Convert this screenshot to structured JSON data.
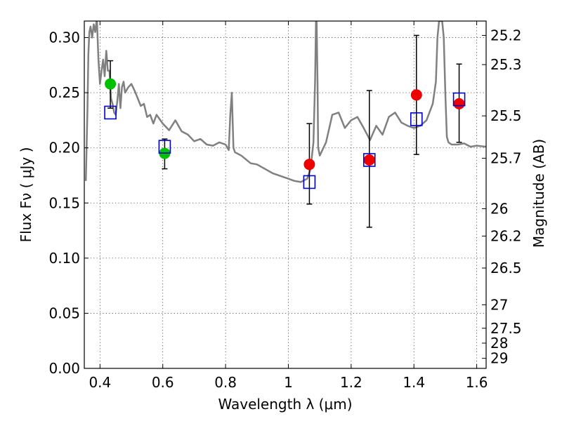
{
  "chart_data": {
    "type": "scatter",
    "title": "",
    "xlabel": "Wavelength  λ (μm)",
    "ylabel": "Flux  Fν  ( μJy )",
    "ylabel_right": "Magnitude (AB)",
    "xlim": [
      0.35,
      1.63
    ],
    "ylim": [
      0.0,
      0.315
    ],
    "grid": true,
    "x_ticks": [
      0.4,
      0.6,
      0.8,
      1.0,
      1.2,
      1.4,
      1.6
    ],
    "x_tick_labels": [
      "0.4",
      "0.6",
      "0.8",
      "1",
      "1.2",
      "1.4",
      "1.6"
    ],
    "y_ticks": [
      0.0,
      0.05,
      0.1,
      0.15,
      0.2,
      0.25,
      0.3
    ],
    "y_tick_labels": [
      "0.00",
      "0.05",
      "0.10",
      "0.15",
      "0.20",
      "0.25",
      "0.30"
    ],
    "right_ticks": [
      {
        "flux": 0.302,
        "label": "25.2"
      },
      {
        "flux": 0.2755,
        "label": "25.3"
      },
      {
        "flux": 0.229,
        "label": "25.5"
      },
      {
        "flux": 0.1906,
        "label": "25.7"
      },
      {
        "flux": 0.1448,
        "label": "26"
      },
      {
        "flux": 0.12,
        "label": "26.2"
      },
      {
        "flux": 0.091,
        "label": "26.5"
      },
      {
        "flux": 0.0577,
        "label": "27"
      },
      {
        "flux": 0.0364,
        "label": "27.5"
      },
      {
        "flux": 0.0229,
        "label": "28"
      },
      {
        "flux": 0.0091,
        "label": "29"
      }
    ],
    "series": [
      {
        "kind": "line",
        "color": "#808080",
        "x": [
          0.355,
          0.36,
          0.363,
          0.366,
          0.37,
          0.375,
          0.38,
          0.385,
          0.39,
          0.395,
          0.4,
          0.405,
          0.41,
          0.415,
          0.42,
          0.425,
          0.43,
          0.435,
          0.44,
          0.445,
          0.45,
          0.455,
          0.46,
          0.465,
          0.47,
          0.475,
          0.48,
          0.49,
          0.5,
          0.51,
          0.52,
          0.53,
          0.54,
          0.55,
          0.56,
          0.57,
          0.58,
          0.59,
          0.6,
          0.62,
          0.64,
          0.66,
          0.68,
          0.7,
          0.72,
          0.74,
          0.76,
          0.78,
          0.8,
          0.81,
          0.815,
          0.82,
          0.825,
          0.83,
          0.85,
          0.88,
          0.9,
          0.95,
          1.0,
          1.02,
          1.04,
          1.06,
          1.07,
          1.08,
          1.085,
          1.088,
          1.09,
          1.093,
          1.095,
          1.1,
          1.12,
          1.14,
          1.16,
          1.18,
          1.2,
          1.22,
          1.24,
          1.26,
          1.28,
          1.3,
          1.32,
          1.34,
          1.36,
          1.38,
          1.4,
          1.42,
          1.44,
          1.46,
          1.47,
          1.475,
          1.48,
          1.485,
          1.49,
          1.495,
          1.5,
          1.505,
          1.51,
          1.52,
          1.54,
          1.56,
          1.58,
          1.6,
          1.63
        ],
        "y": [
          0.17,
          0.235,
          0.285,
          0.305,
          0.31,
          0.3,
          0.312,
          0.305,
          0.318,
          0.28,
          0.258,
          0.27,
          0.28,
          0.265,
          0.288,
          0.27,
          0.27,
          0.245,
          0.24,
          0.232,
          0.23,
          0.242,
          0.258,
          0.236,
          0.255,
          0.26,
          0.25,
          0.255,
          0.258,
          0.252,
          0.245,
          0.238,
          0.24,
          0.228,
          0.23,
          0.222,
          0.23,
          0.226,
          0.222,
          0.216,
          0.225,
          0.215,
          0.212,
          0.206,
          0.208,
          0.203,
          0.202,
          0.205,
          0.203,
          0.198,
          0.23,
          0.25,
          0.2,
          0.196,
          0.193,
          0.186,
          0.185,
          0.177,
          0.172,
          0.17,
          0.169,
          0.172,
          0.18,
          0.205,
          0.26,
          0.315,
          0.315,
          0.26,
          0.2,
          0.193,
          0.205,
          0.23,
          0.232,
          0.218,
          0.225,
          0.228,
          0.218,
          0.207,
          0.22,
          0.212,
          0.228,
          0.232,
          0.223,
          0.22,
          0.218,
          0.22,
          0.225,
          0.24,
          0.26,
          0.3,
          0.315,
          0.315,
          0.315,
          0.3,
          0.25,
          0.21,
          0.205,
          0.203,
          0.203,
          0.204,
          0.201,
          0.202,
          0.201
        ]
      },
      {
        "kind": "errorbars",
        "color": "#000000",
        "x": [
          0.433,
          0.606,
          1.067,
          1.258,
          1.408,
          1.544
        ],
        "low": [
          0.236,
          0.181,
          0.149,
          0.128,
          0.194,
          0.205
        ],
        "high": [
          0.279,
          0.208,
          0.222,
          0.252,
          0.302,
          0.276
        ]
      },
      {
        "kind": "points",
        "marker": "circle",
        "color": "#00c000",
        "x": [
          0.433,
          0.606
        ],
        "y": [
          0.258,
          0.195
        ]
      },
      {
        "kind": "points",
        "marker": "circle",
        "color": "#ee0000",
        "x": [
          1.067,
          1.258,
          1.408,
          1.544
        ],
        "y": [
          0.185,
          0.189,
          0.248,
          0.24
        ]
      },
      {
        "kind": "points",
        "marker": "square-open",
        "color": "#0000cc",
        "x": [
          0.433,
          0.606,
          1.067,
          1.258,
          1.408,
          1.544
        ],
        "y": [
          0.232,
          0.201,
          0.169,
          0.189,
          0.226,
          0.244
        ]
      }
    ]
  }
}
